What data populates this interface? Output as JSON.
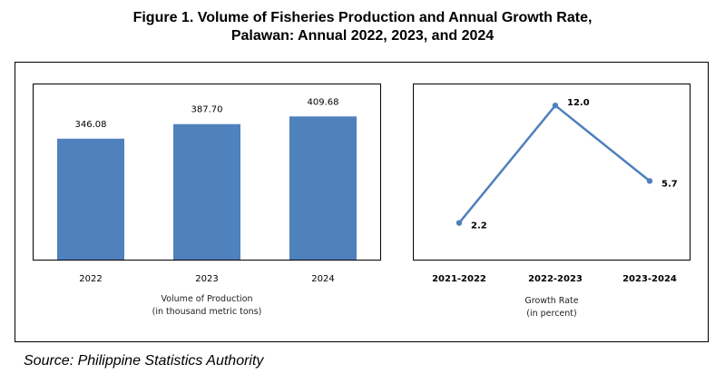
{
  "header": {
    "title_line1": "Figure 1. Volume of Fisheries Production and Annual Growth Rate,",
    "title_line2": "Palawan: Annual 2022, 2023, and 2024"
  },
  "chart_data": [
    {
      "type": "bar",
      "categories": [
        "2022",
        "2023",
        "2024"
      ],
      "values": [
        346.08,
        387.7,
        409.68
      ],
      "value_labels": [
        "346.08",
        "387.70",
        "409.68"
      ],
      "xlabel_line1": "Volume of Production",
      "xlabel_line2": "(in thousand metric tons)",
      "bar_color": "#4f81bd"
    },
    {
      "type": "line",
      "categories": [
        "2021-2022",
        "2022-2023",
        "2023-2024"
      ],
      "values": [
        2.2,
        12.0,
        5.7
      ],
      "value_labels": [
        "2.2",
        "12.0",
        "5.7"
      ],
      "xlabel_line1": "Growth Rate",
      "xlabel_line2": "(in percent)",
      "line_color": "#4f81bd"
    }
  ],
  "footer": {
    "source": "Source: Philippine Statistics Authority"
  }
}
